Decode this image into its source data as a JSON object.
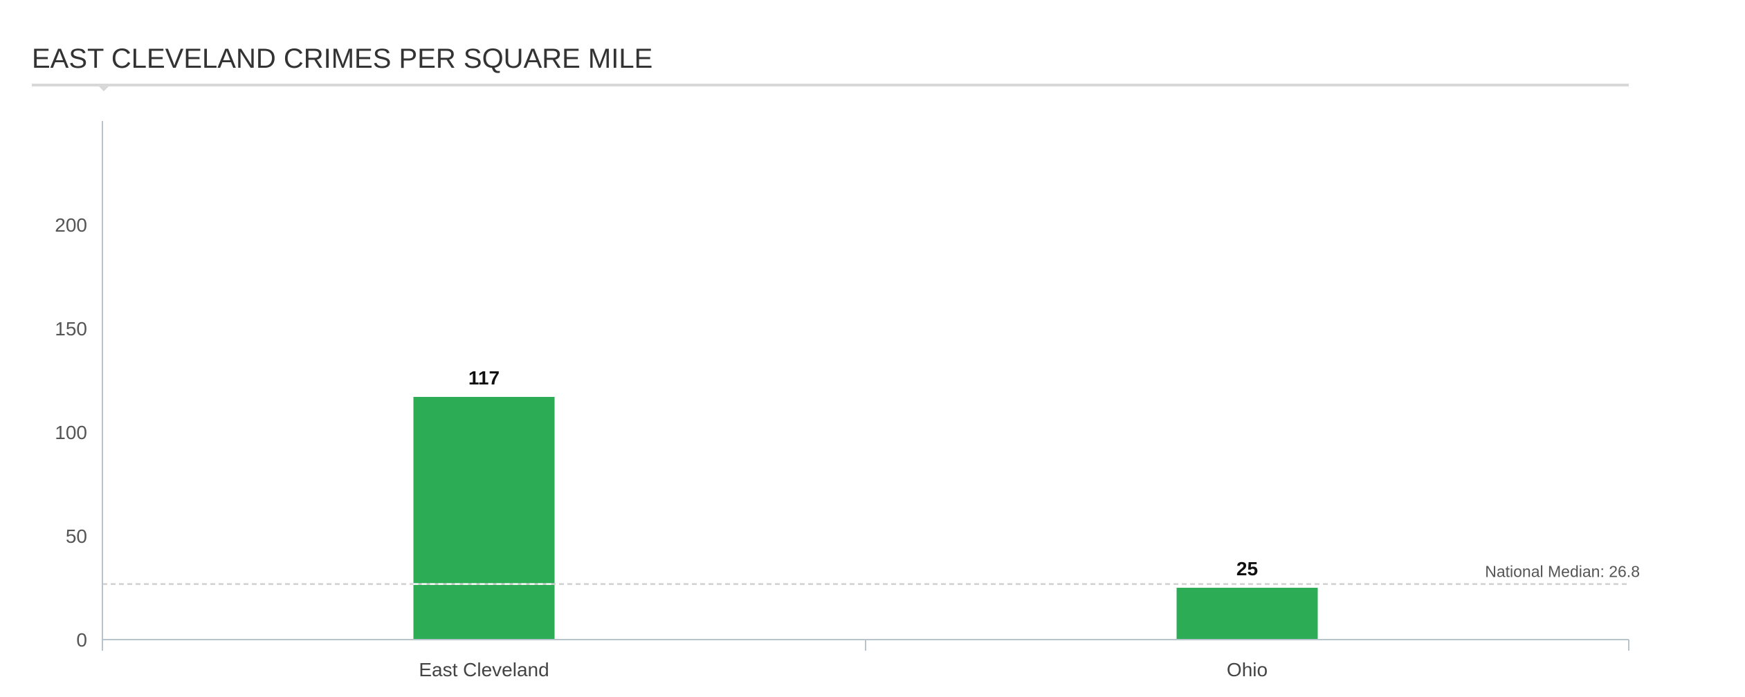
{
  "chart_data": {
    "type": "bar",
    "title": "EAST CLEVELAND CRIMES PER SQUARE MILE",
    "xlabel": "",
    "ylabel": "",
    "categories": [
      "East Cleveland",
      "Ohio"
    ],
    "values": [
      117,
      25
    ],
    "data_labels": [
      "117",
      "25"
    ],
    "ylim": [
      0,
      250
    ],
    "yticks": [
      0,
      50,
      100,
      150,
      200
    ],
    "grid": false,
    "legend": "none",
    "reference_line": {
      "label": "National Median: 26.8",
      "value": 26.8,
      "style": "dashed"
    },
    "colors": {
      "bar": "#2cac54",
      "axis": "#b8c4cc",
      "reference": "#d0d0d0",
      "reference_on_bar": "#ffffff"
    }
  }
}
